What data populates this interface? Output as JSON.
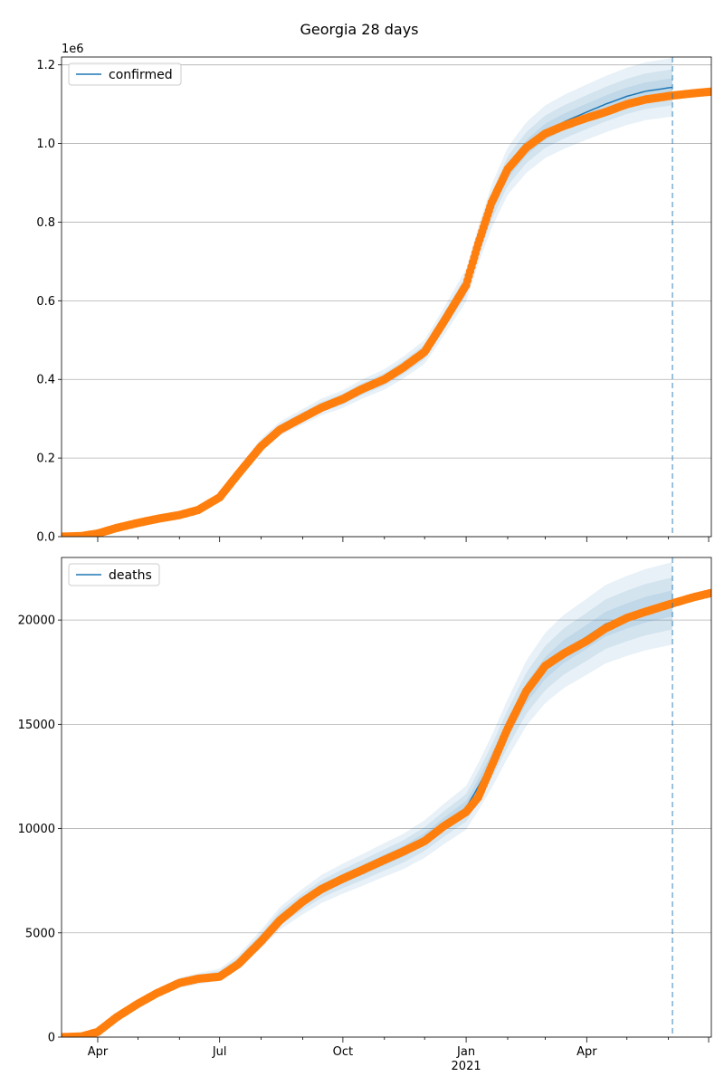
{
  "title": "Georgia 28 days",
  "chart_data": [
    {
      "type": "line",
      "name": "confirmed-panel",
      "legend": "confirmed",
      "legend_position": "upper-left",
      "grid": "y",
      "x_range": [
        "2020-03-05",
        "2021-07-03"
      ],
      "ylim": [
        0,
        1220000
      ],
      "y_ticks": [
        0,
        200000,
        400000,
        600000,
        800000,
        1000000,
        1200000
      ],
      "y_tick_labels": [
        "0.0",
        "0.2",
        "0.4",
        "0.6",
        "0.8",
        "1.0",
        "1.2"
      ],
      "y_offset_label": "1e6",
      "forecast_boundary": "2021-06-04",
      "model": {
        "x": [
          "2020-03-05",
          "2020-03-20",
          "2020-04-01",
          "2020-04-15",
          "2020-05-01",
          "2020-05-15",
          "2020-06-01",
          "2020-06-15",
          "2020-07-01",
          "2020-07-15",
          "2020-08-01",
          "2020-08-15",
          "2020-09-01",
          "2020-09-15",
          "2020-10-01",
          "2020-10-15",
          "2020-11-01",
          "2020-11-15",
          "2020-12-01",
          "2020-12-15",
          "2021-01-01",
          "2021-01-10",
          "2021-01-20",
          "2021-02-01",
          "2021-02-15",
          "2021-03-01",
          "2021-03-15",
          "2021-04-01",
          "2021-04-15",
          "2021-05-01",
          "2021-05-15",
          "2021-06-04"
        ],
        "y": [
          0,
          2000,
          8000,
          22000,
          35000,
          45000,
          55000,
          70000,
          105000,
          165000,
          235000,
          275000,
          305000,
          330000,
          350000,
          375000,
          400000,
          430000,
          470000,
          545000,
          640000,
          740000,
          840000,
          930000,
          990000,
          1030000,
          1055000,
          1080000,
          1100000,
          1120000,
          1133000,
          1143000
        ],
        "band_ratio": [
          0.02,
          0.04,
          0.065
        ]
      },
      "observed": {
        "x": [
          "2020-03-05",
          "2020-03-20",
          "2020-04-01",
          "2020-04-15",
          "2020-05-01",
          "2020-05-15",
          "2020-06-01",
          "2020-06-15",
          "2020-07-01",
          "2020-07-15",
          "2020-08-01",
          "2020-08-15",
          "2020-09-01",
          "2020-09-15",
          "2020-10-01",
          "2020-10-15",
          "2020-11-01",
          "2020-11-15",
          "2020-12-01",
          "2020-12-15",
          "2021-01-01",
          "2021-01-10",
          "2021-01-20",
          "2021-02-01",
          "2021-02-15",
          "2021-03-01",
          "2021-03-15",
          "2021-04-01",
          "2021-04-15",
          "2021-05-01",
          "2021-05-15",
          "2021-06-04",
          "2021-06-20",
          "2021-07-03"
        ],
        "y": [
          0,
          1500,
          8000,
          22000,
          35000,
          45000,
          55000,
          68000,
          100000,
          160000,
          230000,
          272000,
          303000,
          328000,
          350000,
          375000,
          400000,
          430000,
          470000,
          545000,
          640000,
          745000,
          850000,
          935000,
          990000,
          1025000,
          1045000,
          1065000,
          1080000,
          1100000,
          1112000,
          1122000,
          1128000,
          1132000
        ]
      }
    },
    {
      "type": "line",
      "name": "deaths-panel",
      "legend": "deaths",
      "legend_position": "upper-left",
      "grid": "y",
      "x_range": [
        "2020-03-05",
        "2021-07-03"
      ],
      "ylim": [
        0,
        23000
      ],
      "y_ticks": [
        0,
        5000,
        10000,
        15000,
        20000
      ],
      "y_tick_labels": [
        "0",
        "5000",
        "10000",
        "15000",
        "20000"
      ],
      "x_tick_labels": [
        {
          "date": "2020-04-01",
          "label": "Apr"
        },
        {
          "date": "2020-07-01",
          "label": "Jul"
        },
        {
          "date": "2020-10-01",
          "label": "Oct"
        },
        {
          "date": "2021-01-01",
          "label": "Jan",
          "sub": "2021"
        },
        {
          "date": "2021-04-01",
          "label": "Apr"
        }
      ],
      "forecast_boundary": "2021-06-04",
      "model": {
        "x": [
          "2020-03-05",
          "2020-03-20",
          "2020-04-01",
          "2020-04-15",
          "2020-05-01",
          "2020-05-15",
          "2020-06-01",
          "2020-06-15",
          "2020-07-01",
          "2020-07-15",
          "2020-08-01",
          "2020-08-15",
          "2020-09-01",
          "2020-09-15",
          "2020-10-01",
          "2020-10-15",
          "2020-11-01",
          "2020-11-15",
          "2020-12-01",
          "2020-12-15",
          "2021-01-01",
          "2021-01-10",
          "2021-01-20",
          "2021-02-01",
          "2021-02-15",
          "2021-03-01",
          "2021-03-15",
          "2021-04-01",
          "2021-04-15",
          "2021-05-01",
          "2021-05-15",
          "2021-06-04"
        ],
        "y": [
          0,
          30,
          300,
          1000,
          1600,
          2100,
          2600,
          2800,
          3000,
          3600,
          4700,
          5700,
          6500,
          7100,
          7600,
          8000,
          8500,
          8900,
          9500,
          10200,
          11000,
          12000,
          13200,
          14800,
          16500,
          17700,
          18500,
          19200,
          19800,
          20200,
          20500,
          20800
        ],
        "band_ratio": [
          0.03,
          0.06,
          0.095
        ]
      },
      "observed": {
        "x": [
          "2020-03-05",
          "2020-03-20",
          "2020-04-01",
          "2020-04-15",
          "2020-05-01",
          "2020-05-15",
          "2020-06-01",
          "2020-06-15",
          "2020-07-01",
          "2020-07-15",
          "2020-08-01",
          "2020-08-15",
          "2020-09-01",
          "2020-09-15",
          "2020-10-01",
          "2020-10-15",
          "2020-11-01",
          "2020-11-15",
          "2020-12-01",
          "2020-12-15",
          "2021-01-01",
          "2021-01-10",
          "2021-01-20",
          "2021-02-01",
          "2021-02-15",
          "2021-03-01",
          "2021-03-15",
          "2021-04-01",
          "2021-04-15",
          "2021-05-01",
          "2021-05-15",
          "2021-06-04",
          "2021-06-20",
          "2021-07-03"
        ],
        "y": [
          0,
          30,
          250,
          950,
          1600,
          2100,
          2600,
          2800,
          2900,
          3500,
          4600,
          5600,
          6500,
          7100,
          7600,
          8000,
          8500,
          8900,
          9400,
          10100,
          10800,
          11500,
          13000,
          14800,
          16600,
          17800,
          18400,
          19000,
          19600,
          20100,
          20400,
          20800,
          21100,
          21300
        ]
      }
    }
  ]
}
